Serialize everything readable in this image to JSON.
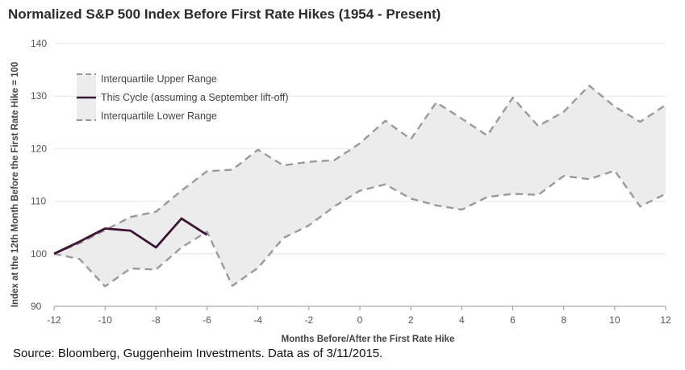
{
  "title": "Normalized S&P 500 Index Before First Rate Hikes (1954 - Present)",
  "source": "Source: Bloomberg, Guggenheim Investments. Data as of 3/11/2015.",
  "colors": {
    "band": "#ececec",
    "range_line": "#9a9a9a",
    "cycle": "#3d1433",
    "grid": "#e6e6e6",
    "axis": "#999999"
  },
  "chart_data": {
    "type": "area",
    "title": "Normalized S&P 500 Index Before First Rate Hikes (1954 - Present)",
    "xlabel": "Months Before/After the First Rate Hike",
    "ylabel": "Index at the 12th Month Before the First Rate Hike = 100",
    "xlim": [
      -12,
      12
    ],
    "ylim": [
      90,
      140
    ],
    "x_ticks": [
      "-12",
      "-10",
      "-8",
      "-6",
      "-4",
      "-2",
      "0",
      "2",
      "4",
      "6",
      "8",
      "10",
      "12"
    ],
    "y_ticks": [
      "90",
      "100",
      "110",
      "120",
      "130",
      "140"
    ],
    "grid": "horizontal",
    "legend": "top-left",
    "series": [
      {
        "name": "Interquartile Upper Range",
        "style": "dashed",
        "x": [
          -12,
          -11,
          -10,
          -9,
          -8,
          -7,
          -6,
          -5,
          -4,
          -3,
          -2,
          -1,
          0,
          1,
          2,
          3,
          4,
          5,
          6,
          7,
          8,
          9,
          10,
          11,
          12
        ],
        "values": [
          100,
          102,
          104.5,
          107,
          108,
          112,
          115.7,
          116,
          119.8,
          116.8,
          117.5,
          117.8,
          121,
          125.3,
          121.8,
          128.8,
          125.7,
          122.5,
          129.7,
          124.3,
          127,
          132,
          128,
          125.1,
          128.3
        ]
      },
      {
        "name": "This Cycle (assuming a September lift-off)",
        "style": "solid",
        "x": [
          -12,
          -11,
          -10,
          -9,
          -8,
          -7,
          -6
        ],
        "values": [
          100,
          102.3,
          104.8,
          104.4,
          101.2,
          106.7,
          103.6
        ]
      },
      {
        "name": "Interquartile Lower Range",
        "style": "dashed",
        "x": [
          -12,
          -11,
          -10,
          -9,
          -8,
          -7,
          -6,
          -5,
          -4,
          -3,
          -2,
          -1,
          0,
          1,
          2,
          3,
          4,
          5,
          6,
          7,
          8,
          9,
          10,
          11,
          12
        ],
        "values": [
          100,
          99,
          93.8,
          97.2,
          97,
          101.2,
          104.2,
          93.9,
          97.3,
          103,
          105.4,
          109,
          112,
          113.2,
          110.5,
          109.2,
          108.4,
          110.8,
          111.4,
          111.2,
          114.8,
          114.2,
          115.8,
          109,
          111.4
        ]
      }
    ]
  }
}
